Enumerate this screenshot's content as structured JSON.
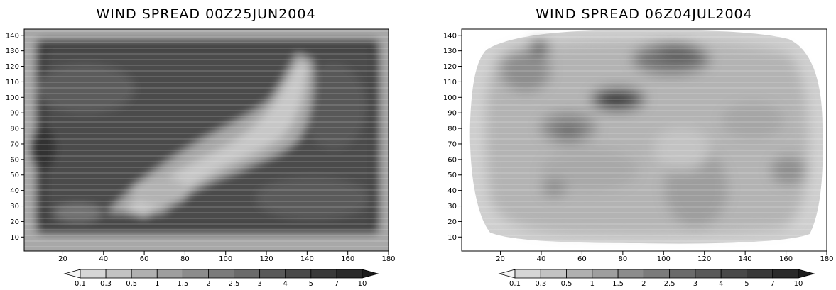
{
  "chart_data": [
    {
      "type": "heatmap",
      "title": "WIND SPREAD 00Z25JUN2004",
      "xlabel": "",
      "ylabel": "",
      "xlim": [
        1,
        180
      ],
      "ylim": [
        1,
        144
      ],
      "x_ticks": [
        20,
        40,
        60,
        80,
        100,
        120,
        140,
        160,
        180
      ],
      "y_ticks": [
        10,
        20,
        30,
        40,
        50,
        60,
        70,
        80,
        90,
        100,
        110,
        120,
        130,
        140
      ],
      "grid": false,
      "approx_shading_levels": [
        {
          "region": "outer frame border",
          "level": "0.5-1"
        },
        {
          "region": "dark outer ring, x 10-170, y 15-135",
          "level": "4-5"
        },
        {
          "region": "light diagonal band from (55,25) to (130,120)",
          "level": "0.5-1"
        },
        {
          "region": "left side interior, x 10-60, y 50-130",
          "level": "3-4"
        },
        {
          "region": "lower right interior, x 110-165, y 15-70",
          "level": "3-4"
        }
      ]
    },
    {
      "type": "heatmap",
      "title": "WIND SPREAD 06Z04JUL2004",
      "xlabel": "",
      "ylabel": "",
      "xlim": [
        1,
        180
      ],
      "ylim": [
        1,
        144
      ],
      "x_ticks": [
        20,
        40,
        60,
        80,
        100,
        120,
        140,
        160,
        180
      ],
      "y_ticks": [
        10,
        20,
        30,
        40,
        50,
        60,
        70,
        80,
        90,
        100,
        110,
        120,
        130,
        140
      ],
      "grid": false,
      "approx_shading_levels": [
        {
          "region": "background field",
          "level": "0.5-1.5"
        },
        {
          "region": "maximum near (78,97)",
          "level": "5-7"
        },
        {
          "region": "upper cluster near (115,125)",
          "level": "2.5-3"
        },
        {
          "region": "upper left near (42,132)",
          "level": "2-2.5"
        },
        {
          "region": "band near (50-70, 70-90)",
          "level": "2-2.5"
        }
      ]
    }
  ],
  "colorbar": {
    "levels": [
      "0.1",
      "0.3",
      "0.5",
      "1",
      "1.5",
      "2",
      "2.5",
      "3",
      "4",
      "5",
      "7",
      "10"
    ],
    "colors": [
      "#f4f4f4",
      "#d6d6d6",
      "#c3c3c3",
      "#b0b0b0",
      "#9e9e9e",
      "#8c8c8c",
      "#7b7b7b",
      "#6a6a6a",
      "#595959",
      "#494949",
      "#393939",
      "#2a2a2a",
      "#1b1b1b"
    ]
  }
}
